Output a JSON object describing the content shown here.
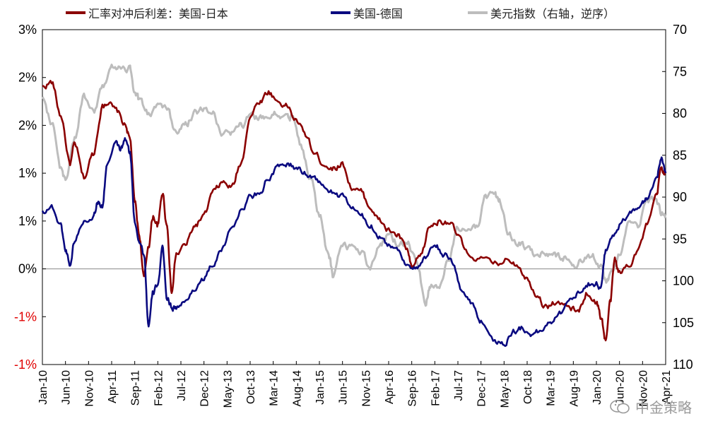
{
  "chart_data": {
    "type": "line",
    "legend": [
      {
        "name": "汇率对冲后利差：美国-日本",
        "color": "#8B0000"
      },
      {
        "name": "美国-德国",
        "color": "#0A0A80"
      },
      {
        "name": "美元指数（右轴，逆序）",
        "color": "#BDBDBD"
      }
    ],
    "y_left": {
      "ticks": [
        {
          "value": 2.5,
          "label": "3%",
          "color": "#000000"
        },
        {
          "value": 2.0,
          "label": "2%",
          "color": "#000000"
        },
        {
          "value": 1.5,
          "label": "2%",
          "color": "#000000"
        },
        {
          "value": 1.0,
          "label": "1%",
          "color": "#000000"
        },
        {
          "value": 0.5,
          "label": "1%",
          "color": "#000000"
        },
        {
          "value": 0.0,
          "label": "0%",
          "color": "#000000"
        },
        {
          "value": -0.5,
          "label": "-1%",
          "color": "#E00000"
        },
        {
          "value": -1.0,
          "label": "-1%",
          "color": "#E00000"
        }
      ],
      "min": -1.0,
      "max": 2.5
    },
    "y_right": {
      "ticks": [
        "70",
        "75",
        "80",
        "85",
        "90",
        "95",
        "100",
        "105",
        "110"
      ],
      "min": 70,
      "max": 110,
      "inverted": true
    },
    "x": {
      "start": "2010-01",
      "end": "2021-04",
      "tick_labels": [
        "Jan-10",
        "Jun-10",
        "Nov-10",
        "Apr-11",
        "Sep-11",
        "Feb-12",
        "Jul-12",
        "Dec-12",
        "May-13",
        "Oct-13",
        "Mar-14",
        "Aug-14",
        "Jan-15",
        "Jun-15",
        "Nov-15",
        "Apr-16",
        "Sep-16",
        "Feb-17",
        "Jul-17",
        "Dec-17",
        "May-18",
        "Oct-18",
        "Mar-19",
        "Aug-19",
        "Jan-20",
        "Jun-20",
        "Nov-20",
        "Apr-21"
      ]
    },
    "series": [
      {
        "name": "汇率对冲后利差：美国-日本",
        "axis": "left",
        "color": "#8B0000",
        "anchors": [
          [
            "2010-01",
            1.9
          ],
          [
            "2010-03",
            1.95
          ],
          [
            "2010-05",
            1.6
          ],
          [
            "2010-07",
            1.1
          ],
          [
            "2010-08",
            1.3
          ],
          [
            "2010-10",
            0.95
          ],
          [
            "2010-12",
            1.2
          ],
          [
            "2011-02",
            1.7
          ],
          [
            "2011-03",
            1.75
          ],
          [
            "2011-05",
            1.65
          ],
          [
            "2011-07",
            1.5
          ],
          [
            "2011-08",
            1.35
          ],
          [
            "2011-09",
            0.7
          ],
          [
            "2011-10",
            0.35
          ],
          [
            "2011-11",
            -0.1
          ],
          [
            "2011-12",
            0.25
          ],
          [
            "2012-01",
            0.55
          ],
          [
            "2012-02",
            0.45
          ],
          [
            "2012-03",
            0.8
          ],
          [
            "2012-04",
            0.45
          ],
          [
            "2012-05",
            -0.25
          ],
          [
            "2012-06",
            0.15
          ],
          [
            "2012-08",
            0.25
          ],
          [
            "2012-10",
            0.45
          ],
          [
            "2012-12",
            0.55
          ],
          [
            "2013-02",
            0.8
          ],
          [
            "2013-04",
            0.9
          ],
          [
            "2013-06",
            0.85
          ],
          [
            "2013-08",
            1.1
          ],
          [
            "2013-10",
            1.6
          ],
          [
            "2013-12",
            1.75
          ],
          [
            "2014-02",
            1.85
          ],
          [
            "2014-04",
            1.75
          ],
          [
            "2014-06",
            1.7
          ],
          [
            "2014-08",
            1.55
          ],
          [
            "2014-10",
            1.4
          ],
          [
            "2014-12",
            1.2
          ],
          [
            "2015-02",
            1.1
          ],
          [
            "2015-04",
            1.05
          ],
          [
            "2015-06",
            1.1
          ],
          [
            "2015-08",
            0.85
          ],
          [
            "2015-10",
            0.8
          ],
          [
            "2015-12",
            0.65
          ],
          [
            "2016-02",
            0.5
          ],
          [
            "2016-04",
            0.4
          ],
          [
            "2016-06",
            0.35
          ],
          [
            "2016-08",
            0.2
          ],
          [
            "2016-09",
            0.0
          ],
          [
            "2016-11",
            0.15
          ],
          [
            "2017-01",
            0.45
          ],
          [
            "2017-03",
            0.5
          ],
          [
            "2017-05",
            0.5
          ],
          [
            "2017-07",
            0.35
          ],
          [
            "2017-09",
            0.15
          ],
          [
            "2017-12",
            0.1
          ],
          [
            "2018-03",
            0.05
          ],
          [
            "2018-06",
            0.1
          ],
          [
            "2018-08",
            0.05
          ],
          [
            "2018-10",
            -0.1
          ],
          [
            "2018-12",
            -0.25
          ],
          [
            "2019-02",
            -0.4
          ],
          [
            "2019-04",
            -0.35
          ],
          [
            "2019-07",
            -0.4
          ],
          [
            "2019-09",
            -0.45
          ],
          [
            "2019-11",
            -0.25
          ],
          [
            "2020-01",
            -0.35
          ],
          [
            "2020-02",
            -0.5
          ],
          [
            "2020-03",
            -0.75
          ],
          [
            "2020-04",
            -0.35
          ],
          [
            "2020-05",
            0.1
          ],
          [
            "2020-06",
            -0.05
          ],
          [
            "2020-08",
            0.05
          ],
          [
            "2020-10",
            0.2
          ],
          [
            "2020-12",
            0.45
          ],
          [
            "2021-02",
            0.75
          ],
          [
            "2021-03",
            1.05
          ],
          [
            "2021-04",
            1.0
          ]
        ]
      },
      {
        "name": "美国-德国",
        "axis": "left",
        "color": "#0A0A80",
        "anchors": [
          [
            "2010-01",
            0.6
          ],
          [
            "2010-03",
            0.65
          ],
          [
            "2010-05",
            0.45
          ],
          [
            "2010-06",
            0.2
          ],
          [
            "2010-07",
            0.05
          ],
          [
            "2010-08",
            0.3
          ],
          [
            "2010-10",
            0.5
          ],
          [
            "2010-12",
            0.55
          ],
          [
            "2011-01",
            0.7
          ],
          [
            "2011-02",
            0.65
          ],
          [
            "2011-03",
            1.1
          ],
          [
            "2011-05",
            1.3
          ],
          [
            "2011-06",
            1.25
          ],
          [
            "2011-07",
            1.35
          ],
          [
            "2011-08",
            1.2
          ],
          [
            "2011-09",
            0.5
          ],
          [
            "2011-10",
            0.3
          ],
          [
            "2011-11",
            0.15
          ],
          [
            "2011-12",
            -0.6
          ],
          [
            "2012-01",
            -0.25
          ],
          [
            "2012-02",
            -0.15
          ],
          [
            "2012-03",
            0.2
          ],
          [
            "2012-04",
            -0.3
          ],
          [
            "2012-05",
            -0.4
          ],
          [
            "2012-06",
            -0.4
          ],
          [
            "2012-08",
            -0.35
          ],
          [
            "2012-10",
            -0.2
          ],
          [
            "2012-12",
            -0.1
          ],
          [
            "2013-02",
            0.05
          ],
          [
            "2013-04",
            0.2
          ],
          [
            "2013-06",
            0.45
          ],
          [
            "2013-08",
            0.6
          ],
          [
            "2013-10",
            0.75
          ],
          [
            "2013-12",
            0.8
          ],
          [
            "2014-02",
            0.95
          ],
          [
            "2014-04",
            1.05
          ],
          [
            "2014-06",
            1.1
          ],
          [
            "2014-08",
            1.05
          ],
          [
            "2014-10",
            1.0
          ],
          [
            "2014-12",
            0.95
          ],
          [
            "2015-02",
            0.85
          ],
          [
            "2015-04",
            0.8
          ],
          [
            "2015-06",
            0.75
          ],
          [
            "2015-08",
            0.65
          ],
          [
            "2015-10",
            0.55
          ],
          [
            "2015-12",
            0.45
          ],
          [
            "2016-02",
            0.35
          ],
          [
            "2016-04",
            0.25
          ],
          [
            "2016-06",
            0.2
          ],
          [
            "2016-08",
            0.05
          ],
          [
            "2016-10",
            0.0
          ],
          [
            "2016-12",
            0.1
          ],
          [
            "2017-02",
            0.25
          ],
          [
            "2017-04",
            0.15
          ],
          [
            "2017-06",
            0.05
          ],
          [
            "2017-08",
            -0.25
          ],
          [
            "2017-10",
            -0.35
          ],
          [
            "2017-12",
            -0.55
          ],
          [
            "2018-03",
            -0.75
          ],
          [
            "2018-05",
            -0.78
          ],
          [
            "2018-07",
            -0.65
          ],
          [
            "2018-09",
            -0.62
          ],
          [
            "2018-11",
            -0.68
          ],
          [
            "2019-01",
            -0.65
          ],
          [
            "2019-03",
            -0.55
          ],
          [
            "2019-05",
            -0.45
          ],
          [
            "2019-07",
            -0.35
          ],
          [
            "2019-09",
            -0.25
          ],
          [
            "2019-11",
            -0.15
          ],
          [
            "2020-01",
            -0.15
          ],
          [
            "2020-02",
            -0.2
          ],
          [
            "2020-03",
            0.2
          ],
          [
            "2020-05",
            0.35
          ],
          [
            "2020-07",
            0.55
          ],
          [
            "2020-09",
            0.6
          ],
          [
            "2020-11",
            0.7
          ],
          [
            "2020-12",
            0.75
          ],
          [
            "2021-02",
            0.95
          ],
          [
            "2021-03",
            1.15
          ],
          [
            "2021-04",
            1.0
          ]
        ]
      },
      {
        "name": "美元指数（右轴，逆序）",
        "axis": "right",
        "color": "#BDBDBD",
        "anchors": [
          [
            "2010-01",
            78
          ],
          [
            "2010-03",
            81
          ],
          [
            "2010-05",
            86.5
          ],
          [
            "2010-06",
            88
          ],
          [
            "2010-08",
            83
          ],
          [
            "2010-10",
            78
          ],
          [
            "2010-12",
            80
          ],
          [
            "2011-02",
            77
          ],
          [
            "2011-04",
            74.5
          ],
          [
            "2011-06",
            74.8
          ],
          [
            "2011-08",
            74.5
          ],
          [
            "2011-09",
            77.5
          ],
          [
            "2011-10",
            78.5
          ],
          [
            "2011-12",
            80
          ],
          [
            "2012-02",
            79
          ],
          [
            "2012-04",
            79.5
          ],
          [
            "2012-06",
            82.5
          ],
          [
            "2012-08",
            81.5
          ],
          [
            "2012-10",
            80
          ],
          [
            "2012-12",
            79.5
          ],
          [
            "2013-02",
            80
          ],
          [
            "2013-04",
            82.5
          ],
          [
            "2013-06",
            82.5
          ],
          [
            "2013-08",
            81.5
          ],
          [
            "2013-10",
            80.5
          ],
          [
            "2013-12",
            80.5
          ],
          [
            "2014-02",
            80.5
          ],
          [
            "2014-04",
            80
          ],
          [
            "2014-06",
            80.5
          ],
          [
            "2014-07",
            80.5
          ],
          [
            "2014-09",
            84
          ],
          [
            "2014-11",
            87.5
          ],
          [
            "2015-01",
            92
          ],
          [
            "2015-03",
            97
          ],
          [
            "2015-04",
            99.5
          ],
          [
            "2015-06",
            95.5
          ],
          [
            "2015-08",
            96
          ],
          [
            "2015-10",
            96.5
          ],
          [
            "2015-12",
            98.5
          ],
          [
            "2016-02",
            96
          ],
          [
            "2016-04",
            94.5
          ],
          [
            "2016-06",
            95.5
          ],
          [
            "2016-08",
            95.5
          ],
          [
            "2016-10",
            97.5
          ],
          [
            "2016-12",
            102.5
          ],
          [
            "2017-01",
            100.5
          ],
          [
            "2017-03",
            100.5
          ],
          [
            "2017-05",
            97.5
          ],
          [
            "2017-07",
            94
          ],
          [
            "2017-09",
            93.5
          ],
          [
            "2017-11",
            93.5
          ],
          [
            "2018-01",
            90
          ],
          [
            "2018-03",
            89.5
          ],
          [
            "2018-04",
            90.5
          ],
          [
            "2018-06",
            94.5
          ],
          [
            "2018-08",
            95.5
          ],
          [
            "2018-10",
            96
          ],
          [
            "2018-12",
            97
          ],
          [
            "2019-02",
            96.5
          ],
          [
            "2019-04",
            97
          ],
          [
            "2019-06",
            97.2
          ],
          [
            "2019-08",
            98
          ],
          [
            "2019-10",
            97.5
          ],
          [
            "2019-12",
            97
          ],
          [
            "2020-02",
            98.5
          ],
          [
            "2020-03",
            100
          ],
          [
            "2020-04",
            99.5
          ],
          [
            "2020-06",
            97
          ],
          [
            "2020-08",
            93.5
          ],
          [
            "2020-10",
            93.5
          ],
          [
            "2020-12",
            90.5
          ],
          [
            "2021-02",
            90.5
          ],
          [
            "2021-03",
            92
          ],
          [
            "2021-04",
            92.5
          ]
        ]
      }
    ]
  },
  "watermark": {
    "text": "中金策略"
  }
}
